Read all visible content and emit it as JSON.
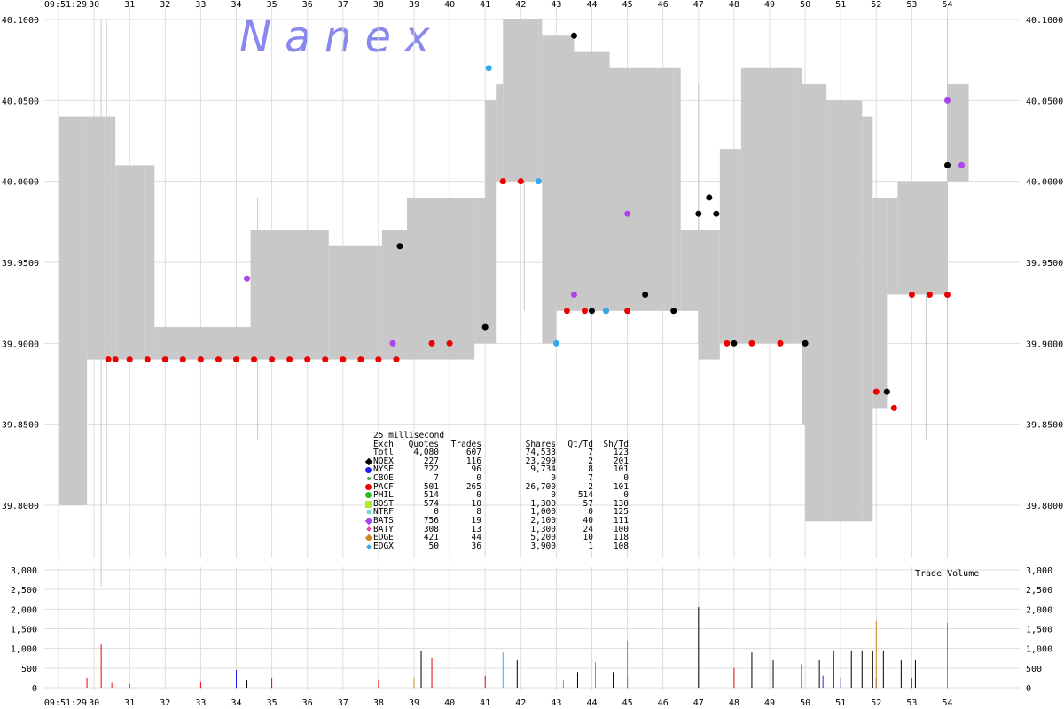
{
  "watermark": "N  a  n  e  x",
  "chart_data": {
    "type": "line",
    "time_labels_top": [
      "09:51:29",
      "30",
      "31",
      "32",
      "33",
      "34",
      "35",
      "36",
      "37",
      "38",
      "39",
      "40",
      "41",
      "42",
      "43",
      "44",
      "45",
      "46",
      "47",
      "48",
      "49",
      "50",
      "51",
      "52",
      "53",
      "54"
    ],
    "time_labels_bottom": [
      "09:51:29",
      "30",
      "31",
      "32",
      "33",
      "34",
      "35",
      "36",
      "37",
      "38",
      "39",
      "40",
      "41",
      "42",
      "43",
      "44",
      "45",
      "46",
      "47",
      "48",
      "49",
      "50",
      "51",
      "52",
      "53",
      "54"
    ],
    "price_ticks": [
      "40.1000",
      "40.0500",
      "40.0000",
      "39.9500",
      "39.9000",
      "39.8500",
      "39.8000"
    ],
    "ylim": [
      39.78,
      40.1
    ],
    "volume_ticks": [
      "3,000",
      "2,500",
      "2,000",
      "1,500",
      "1,000",
      "500",
      "0"
    ],
    "volume_ylim": [
      0,
      3000
    ],
    "volume_title": "Trade Volume",
    "nbbo_band": [
      {
        "t": 29.0,
        "bid": 39.8,
        "ask": 40.04
      },
      {
        "t": 29.8,
        "bid": 39.89,
        "ask": 40.04
      },
      {
        "t": 30.3,
        "bid": 39.89,
        "ask": 40.04
      },
      {
        "t": 30.45,
        "bid": 39.89,
        "ask": 40.04
      },
      {
        "t": 30.6,
        "bid": 39.89,
        "ask": 40.01
      },
      {
        "t": 31.4,
        "bid": 39.89,
        "ask": 40.01
      },
      {
        "t": 31.7,
        "bid": 39.89,
        "ask": 39.91
      },
      {
        "t": 34.3,
        "bid": 39.89,
        "ask": 39.91
      },
      {
        "t": 34.4,
        "bid": 39.89,
        "ask": 39.97
      },
      {
        "t": 36.5,
        "bid": 39.89,
        "ask": 39.97
      },
      {
        "t": 36.6,
        "bid": 39.89,
        "ask": 39.96
      },
      {
        "t": 38.0,
        "bid": 39.89,
        "ask": 39.96
      },
      {
        "t": 38.1,
        "bid": 39.89,
        "ask": 39.97
      },
      {
        "t": 38.8,
        "bid": 39.89,
        "ask": 39.99
      },
      {
        "t": 40.7,
        "bid": 39.9,
        "ask": 39.99
      },
      {
        "t": 41.0,
        "bid": 39.9,
        "ask": 40.05
      },
      {
        "t": 41.3,
        "bid": 40.0,
        "ask": 40.06
      },
      {
        "t": 41.5,
        "bid": 40.0,
        "ask": 40.1
      },
      {
        "t": 42.5,
        "bid": 40.0,
        "ask": 40.1
      },
      {
        "t": 42.6,
        "bid": 39.9,
        "ask": 40.09
      },
      {
        "t": 43.0,
        "bid": 39.92,
        "ask": 40.09
      },
      {
        "t": 43.5,
        "bid": 39.92,
        "ask": 40.08
      },
      {
        "t": 44.3,
        "bid": 39.92,
        "ask": 40.08
      },
      {
        "t": 44.5,
        "bid": 39.92,
        "ask": 40.07
      },
      {
        "t": 46.3,
        "bid": 39.92,
        "ask": 40.07
      },
      {
        "t": 46.5,
        "bid": 39.92,
        "ask": 39.97
      },
      {
        "t": 47.0,
        "bid": 39.89,
        "ask": 39.97
      },
      {
        "t": 47.6,
        "bid": 39.9,
        "ask": 40.02
      },
      {
        "t": 48.2,
        "bid": 39.9,
        "ask": 40.07
      },
      {
        "t": 49.8,
        "bid": 39.9,
        "ask": 40.07
      },
      {
        "t": 49.9,
        "bid": 39.85,
        "ask": 40.06
      },
      {
        "t": 50.0,
        "bid": 39.79,
        "ask": 40.06
      },
      {
        "t": 50.6,
        "bid": 39.79,
        "ask": 40.05
      },
      {
        "t": 51.0,
        "bid": 39.79,
        "ask": 40.05
      },
      {
        "t": 51.6,
        "bid": 39.79,
        "ask": 40.04
      },
      {
        "t": 51.9,
        "bid": 39.86,
        "ask": 39.99
      },
      {
        "t": 52.3,
        "bid": 39.93,
        "ask": 39.99
      },
      {
        "t": 52.6,
        "bid": 39.93,
        "ask": 40.0
      },
      {
        "t": 53.9,
        "bid": 39.93,
        "ask": 40.0
      },
      {
        "t": 54.0,
        "bid": 40.0,
        "ask": 40.06
      },
      {
        "t": 54.6,
        "bid": 40.0,
        "ask": 40.06
      }
    ],
    "trade_series": [
      {
        "name": "PACF",
        "color": "#ee0000",
        "t": [
          30.4,
          30.6,
          31.0,
          31.5,
          32.0,
          32.5,
          33.0,
          33.5,
          34.0,
          34.5,
          35.0,
          35.5,
          36.0,
          36.5,
          37.0,
          37.5,
          38.0,
          38.5,
          39.5,
          40.0,
          41.5,
          42.0,
          43.3,
          43.8,
          44.4,
          45.0,
          47.8,
          48.5,
          49.3,
          50.0,
          52.0,
          52.5,
          53.0,
          53.5,
          54.0
        ],
        "v": [
          39.89,
          39.89,
          39.89,
          39.89,
          39.89,
          39.89,
          39.89,
          39.89,
          39.89,
          39.89,
          39.89,
          39.89,
          39.89,
          39.89,
          39.89,
          39.89,
          39.89,
          39.89,
          39.9,
          39.9,
          40.0,
          40.0,
          39.92,
          39.92,
          39.92,
          39.92,
          39.9,
          39.9,
          39.9,
          39.9,
          39.87,
          39.86,
          39.93,
          39.93,
          39.93
        ]
      },
      {
        "name": "NQEX",
        "color": "#000000",
        "t": [
          38.6,
          41.0,
          43.5,
          44.0,
          45.5,
          46.3,
          47.0,
          47.3,
          47.5,
          48.0,
          50.0,
          52.3,
          54.0
        ],
        "v": [
          39.96,
          39.91,
          40.09,
          39.92,
          39.93,
          39.92,
          39.98,
          39.99,
          39.98,
          39.9,
          39.9,
          39.87,
          40.01
        ]
      },
      {
        "name": "BATS",
        "color": "#aa44ee",
        "t": [
          34.3,
          38.4,
          43.5,
          45.0,
          54.0,
          54.4
        ],
        "v": [
          39.94,
          39.9,
          39.93,
          39.98,
          40.05,
          40.01
        ]
      },
      {
        "name": "EDGX",
        "color": "#33aaee",
        "t": [
          41.1,
          42.5,
          43.0,
          44.4
        ],
        "v": [
          40.07,
          40.0,
          39.9,
          39.92
        ]
      }
    ],
    "volume_series": [
      {
        "name": "PACF",
        "color": "#ee0000",
        "t": [
          29.8,
          30.2,
          30.5,
          31.0,
          33.0,
          35.0,
          38.0,
          39.5,
          41.0,
          45.0,
          48.0,
          53.0,
          54.0
        ],
        "v": [
          250,
          1100,
          120,
          100,
          150,
          250,
          200,
          750,
          300,
          250,
          500,
          250,
          250
        ]
      },
      {
        "name": "NQEX",
        "color": "#000000",
        "t": [
          34.3,
          39.2,
          41.9,
          43.6,
          44.6,
          47.0,
          48.5,
          49.1,
          49.9,
          50.4,
          50.8,
          51.3,
          51.6,
          51.9,
          52.2,
          52.7,
          53.1
        ],
        "v": [
          200,
          950,
          700,
          400,
          400,
          2050,
          900,
          700,
          600,
          700,
          950,
          950,
          950,
          950,
          950,
          700,
          700
        ]
      },
      {
        "name": "EDGX",
        "color": "#33aaee",
        "t": [
          41.5,
          43.2,
          45.0,
          54.0
        ],
        "v": [
          900,
          200,
          1200,
          1650
        ]
      },
      {
        "name": "NYSE",
        "color": "#2222ee",
        "t": [
          34.0,
          50.5,
          51.0,
          52.0
        ],
        "v": [
          450,
          300,
          250,
          250
        ]
      },
      {
        "name": "EDGE",
        "color": "#cc8822",
        "t": [
          39.0,
          44.1,
          52.0
        ],
        "v": [
          250,
          650,
          1700
        ]
      }
    ],
    "stats": {
      "title": "25 millisecond",
      "columns": [
        "Exch",
        "Quotes",
        "Trades",
        "Shares",
        "Qt/Td",
        "Sh/Td"
      ],
      "rows": [
        {
          "exch": "Totl",
          "quotes": "4,080",
          "trades": "607",
          "shares": "74,533",
          "qt_td": "7",
          "sh_td": "123",
          "color": "",
          "marker": "none"
        },
        {
          "exch": "NQEX",
          "quotes": "227",
          "trades": "116",
          "shares": "23,299",
          "qt_td": "2",
          "sh_td": "201",
          "color": "#000000",
          "marker": "diamond"
        },
        {
          "exch": "NYSE",
          "quotes": "722",
          "trades": "96",
          "shares": "9,734",
          "qt_td": "8",
          "sh_td": "101",
          "color": "#2222ee",
          "marker": "circle"
        },
        {
          "exch": "CBOE",
          "quotes": "7",
          "trades": "0",
          "shares": "0",
          "qt_td": "7",
          "sh_td": "0",
          "color": "#44aa44",
          "marker": "small-circle"
        },
        {
          "exch": "PACF",
          "quotes": "501",
          "trades": "265",
          "shares": "26,700",
          "qt_td": "2",
          "sh_td": "101",
          "color": "#ee0000",
          "marker": "circle"
        },
        {
          "exch": "PHIL",
          "quotes": "514",
          "trades": "0",
          "shares": "0",
          "qt_td": "514",
          "sh_td": "0",
          "color": "#22bb22",
          "marker": "circle"
        },
        {
          "exch": "BOST",
          "quotes": "574",
          "trades": "10",
          "shares": "1,300",
          "qt_td": "57",
          "sh_td": "130",
          "color": "#aaee22",
          "marker": "square"
        },
        {
          "exch": "NTRF",
          "quotes": "0",
          "trades": "8",
          "shares": "1,000",
          "qt_td": "0",
          "sh_td": "125",
          "color": "#66ddcc",
          "marker": "small-square"
        },
        {
          "exch": "BATS",
          "quotes": "756",
          "trades": "19",
          "shares": "2,100",
          "qt_td": "40",
          "sh_td": "111",
          "color": "#aa44ee",
          "marker": "diamond"
        },
        {
          "exch": "BATY",
          "quotes": "308",
          "trades": "13",
          "shares": "1,300",
          "qt_td": "24",
          "sh_td": "100",
          "color": "#ee44aa",
          "marker": "small-diamond"
        },
        {
          "exch": "EDGE",
          "quotes": "421",
          "trades": "44",
          "shares": "5,200",
          "qt_td": "10",
          "sh_td": "118",
          "color": "#cc8822",
          "marker": "diamond"
        },
        {
          "exch": "EDGX",
          "quotes": "50",
          "trades": "36",
          "shares": "3,900",
          "qt_td": "1",
          "sh_td": "108",
          "color": "#33aaee",
          "marker": "small-diamond"
        }
      ]
    }
  }
}
